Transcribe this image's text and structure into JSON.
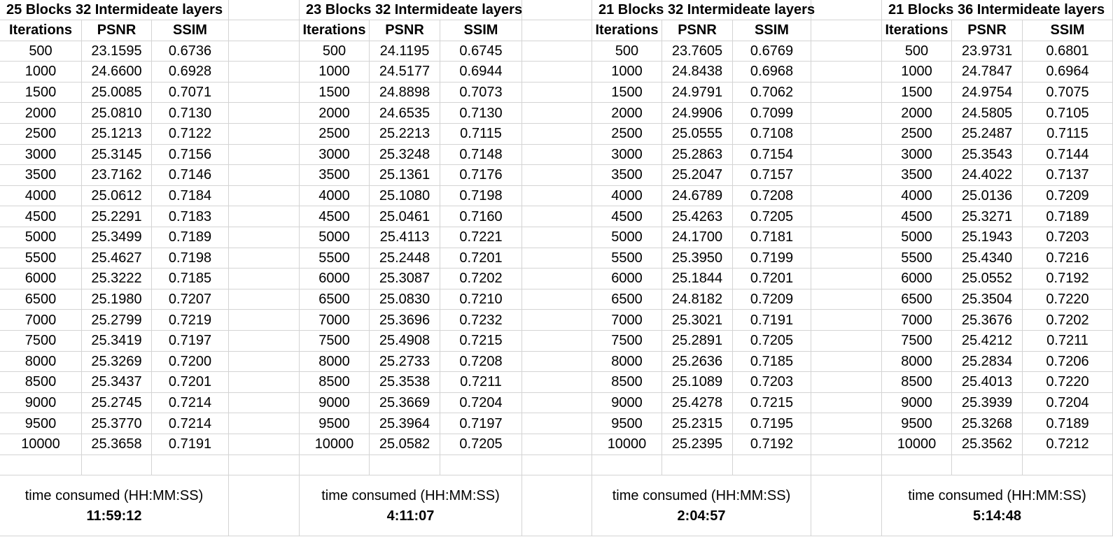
{
  "tables": [
    {
      "title": "25 Blocks 32 Intermideate layers",
      "headers": [
        "Iterations",
        "PSNR",
        "SSIM"
      ],
      "rows": [
        [
          "500",
          "23.1595",
          "0.6736"
        ],
        [
          "1000",
          "24.6600",
          "0.6928"
        ],
        [
          "1500",
          "25.0085",
          "0.7071"
        ],
        [
          "2000",
          "25.0810",
          "0.7130"
        ],
        [
          "2500",
          "25.1213",
          "0.7122"
        ],
        [
          "3000",
          "25.3145",
          "0.7156"
        ],
        [
          "3500",
          "23.7162",
          "0.7146"
        ],
        [
          "4000",
          "25.0612",
          "0.7184"
        ],
        [
          "4500",
          "25.2291",
          "0.7183"
        ],
        [
          "5000",
          "25.3499",
          "0.7189"
        ],
        [
          "5500",
          "25.4627",
          "0.7198"
        ],
        [
          "6000",
          "25.3222",
          "0.7185"
        ],
        [
          "6500",
          "25.1980",
          "0.7207"
        ],
        [
          "7000",
          "25.2799",
          "0.7219"
        ],
        [
          "7500",
          "25.3419",
          "0.7197"
        ],
        [
          "8000",
          "25.3269",
          "0.7200"
        ],
        [
          "8500",
          "25.3437",
          "0.7201"
        ],
        [
          "9000",
          "25.2745",
          "0.7214"
        ],
        [
          "9500",
          "25.3770",
          "0.7214"
        ],
        [
          "10000",
          "25.3658",
          "0.7191"
        ]
      ],
      "time_label": "time consumed (HH:MM:SS)",
      "time_value": "11:59:12"
    },
    {
      "title": "23 Blocks 32 Intermideate layers",
      "headers": [
        "Iterations",
        "PSNR",
        "SSIM"
      ],
      "rows": [
        [
          "500",
          "24.1195",
          "0.6745"
        ],
        [
          "1000",
          "24.5177",
          "0.6944"
        ],
        [
          "1500",
          "24.8898",
          "0.7073"
        ],
        [
          "2000",
          "24.6535",
          "0.7130"
        ],
        [
          "2500",
          "25.2213",
          "0.7115"
        ],
        [
          "3000",
          "25.3248",
          "0.7148"
        ],
        [
          "3500",
          "25.1361",
          "0.7176"
        ],
        [
          "4000",
          "25.1080",
          "0.7198"
        ],
        [
          "4500",
          "25.0461",
          "0.7160"
        ],
        [
          "5000",
          "25.4113",
          "0.7221"
        ],
        [
          "5500",
          "25.2448",
          "0.7201"
        ],
        [
          "6000",
          "25.3087",
          "0.7202"
        ],
        [
          "6500",
          "25.0830",
          "0.7210"
        ],
        [
          "7000",
          "25.3696",
          "0.7232"
        ],
        [
          "7500",
          "25.4908",
          "0.7215"
        ],
        [
          "8000",
          "25.2733",
          "0.7208"
        ],
        [
          "8500",
          "25.3538",
          "0.7211"
        ],
        [
          "9000",
          "25.3669",
          "0.7204"
        ],
        [
          "9500",
          "25.3964",
          "0.7197"
        ],
        [
          "10000",
          "25.0582",
          "0.7205"
        ]
      ],
      "time_label": "time consumed (HH:MM:SS)",
      "time_value": "4:11:07"
    },
    {
      "title": "21 Blocks 32 Intermideate layers",
      "headers": [
        "Iterations",
        "PSNR",
        "SSIM"
      ],
      "rows": [
        [
          "500",
          "23.7605",
          "0.6769"
        ],
        [
          "1000",
          "24.8438",
          "0.6968"
        ],
        [
          "1500",
          "24.9791",
          "0.7062"
        ],
        [
          "2000",
          "24.9906",
          "0.7099"
        ],
        [
          "2500",
          "25.0555",
          "0.7108"
        ],
        [
          "3000",
          "25.2863",
          "0.7154"
        ],
        [
          "3500",
          "25.2047",
          "0.7157"
        ],
        [
          "4000",
          "24.6789",
          "0.7208"
        ],
        [
          "4500",
          "25.4263",
          "0.7205"
        ],
        [
          "5000",
          "24.1700",
          "0.7181"
        ],
        [
          "5500",
          "25.3950",
          "0.7199"
        ],
        [
          "6000",
          "25.1844",
          "0.7201"
        ],
        [
          "6500",
          "24.8182",
          "0.7209"
        ],
        [
          "7000",
          "25.3021",
          "0.7191"
        ],
        [
          "7500",
          "25.2891",
          "0.7205"
        ],
        [
          "8000",
          "25.2636",
          "0.7185"
        ],
        [
          "8500",
          "25.1089",
          "0.7203"
        ],
        [
          "9000",
          "25.4278",
          "0.7215"
        ],
        [
          "9500",
          "25.2315",
          "0.7195"
        ],
        [
          "10000",
          "25.2395",
          "0.7192"
        ]
      ],
      "time_label": "time consumed (HH:MM:SS)",
      "time_value": "2:04:57"
    },
    {
      "title": "21 Blocks 36 Intermideate layers",
      "headers": [
        "Iterations",
        "PSNR",
        "SSIM"
      ],
      "rows": [
        [
          "500",
          "23.9731",
          "0.6801"
        ],
        [
          "1000",
          "24.7847",
          "0.6964"
        ],
        [
          "1500",
          "24.9754",
          "0.7075"
        ],
        [
          "2000",
          "24.5805",
          "0.7105"
        ],
        [
          "2500",
          "25.2487",
          "0.7115"
        ],
        [
          "3000",
          "25.3543",
          "0.7144"
        ],
        [
          "3500",
          "24.4022",
          "0.7137"
        ],
        [
          "4000",
          "25.0136",
          "0.7209"
        ],
        [
          "4500",
          "25.3271",
          "0.7189"
        ],
        [
          "5000",
          "25.1943",
          "0.7203"
        ],
        [
          "5500",
          "25.4340",
          "0.7216"
        ],
        [
          "6000",
          "25.0552",
          "0.7192"
        ],
        [
          "6500",
          "25.3504",
          "0.7220"
        ],
        [
          "7000",
          "25.3676",
          "0.7202"
        ],
        [
          "7500",
          "25.4212",
          "0.7211"
        ],
        [
          "8000",
          "25.2834",
          "0.7206"
        ],
        [
          "8500",
          "25.4013",
          "0.7220"
        ],
        [
          "9000",
          "25.3939",
          "0.7204"
        ],
        [
          "9500",
          "25.3268",
          "0.7189"
        ],
        [
          "10000",
          "25.3562",
          "0.7212"
        ]
      ],
      "time_label": "time consumed (HH:MM:SS)",
      "time_value": "5:14:48"
    }
  ]
}
